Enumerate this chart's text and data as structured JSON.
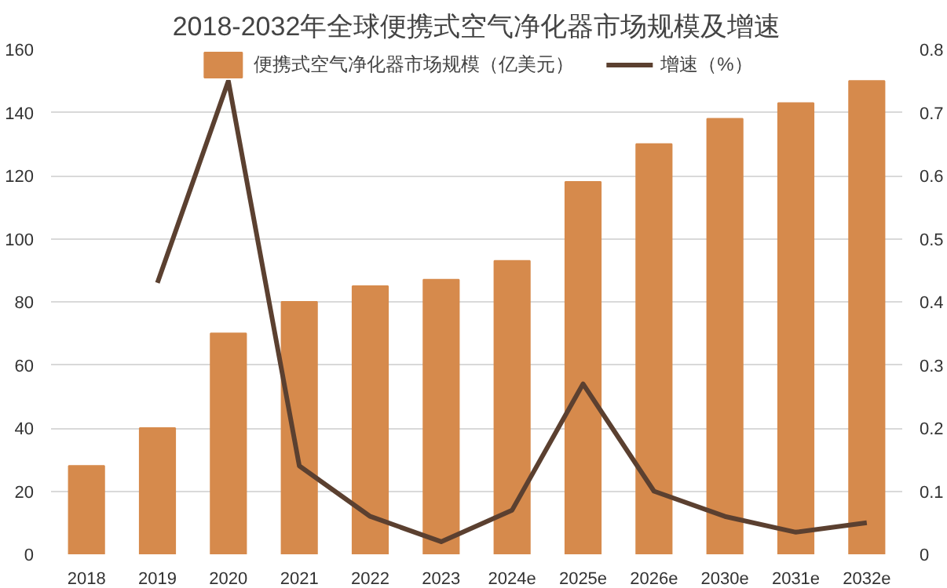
{
  "chart_data": {
    "type": "bar",
    "title": "2018-2032年全球便携式空气净化器市场规模及增速",
    "categories": [
      "2018",
      "2019",
      "2020",
      "2021",
      "2022",
      "2023",
      "2024e",
      "2025e",
      "2026e",
      "2030e",
      "2031e",
      "2032e"
    ],
    "series": [
      {
        "name": "便携式空气净化器市场规模（亿美元）",
        "color": "#d68a4c",
        "values": [
          28,
          40,
          70,
          80,
          85,
          87,
          93,
          118,
          130,
          138,
          143,
          150
        ]
      },
      {
        "name": "增速（%）",
        "type": "line",
        "axis": "y2",
        "color": "#5b4030",
        "values": [
          null,
          0.43,
          0.75,
          0.14,
          0.06,
          0.02,
          0.07,
          0.27,
          0.1,
          0.06,
          0.035,
          0.05
        ]
      }
    ],
    "ylim": [
      0,
      160
    ],
    "yticks": [
      0,
      20,
      40,
      60,
      80,
      100,
      120,
      140,
      160
    ],
    "y2lim": [
      0,
      0.8
    ],
    "y2ticks": [
      0,
      0.1,
      0.2,
      0.3,
      0.4,
      0.5,
      0.6,
      0.7,
      0.8
    ],
    "grid": "y",
    "legend": "top",
    "marker": "none",
    "line_style": "solid"
  }
}
